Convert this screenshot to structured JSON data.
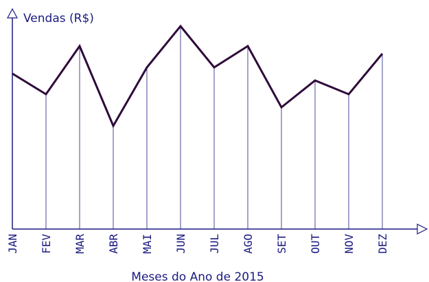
{
  "chart_data": {
    "type": "line",
    "y_label": "Vendas (R$)",
    "x_label": "Meses do Ano de 2015",
    "categories": [
      "JAN",
      "FEV",
      "MAR",
      "ABR",
      "MAI",
      "JUN",
      "JUL",
      "AGO",
      "SET",
      "OUT",
      "NOV",
      "DEZ"
    ],
    "values": [
      226,
      196,
      266,
      150,
      235,
      295,
      235,
      266,
      177,
      216,
      196,
      255
    ],
    "color": "#2e0a3a",
    "drop_line_color": "#1a1a80",
    "ylim": [
      0,
      315
    ]
  }
}
